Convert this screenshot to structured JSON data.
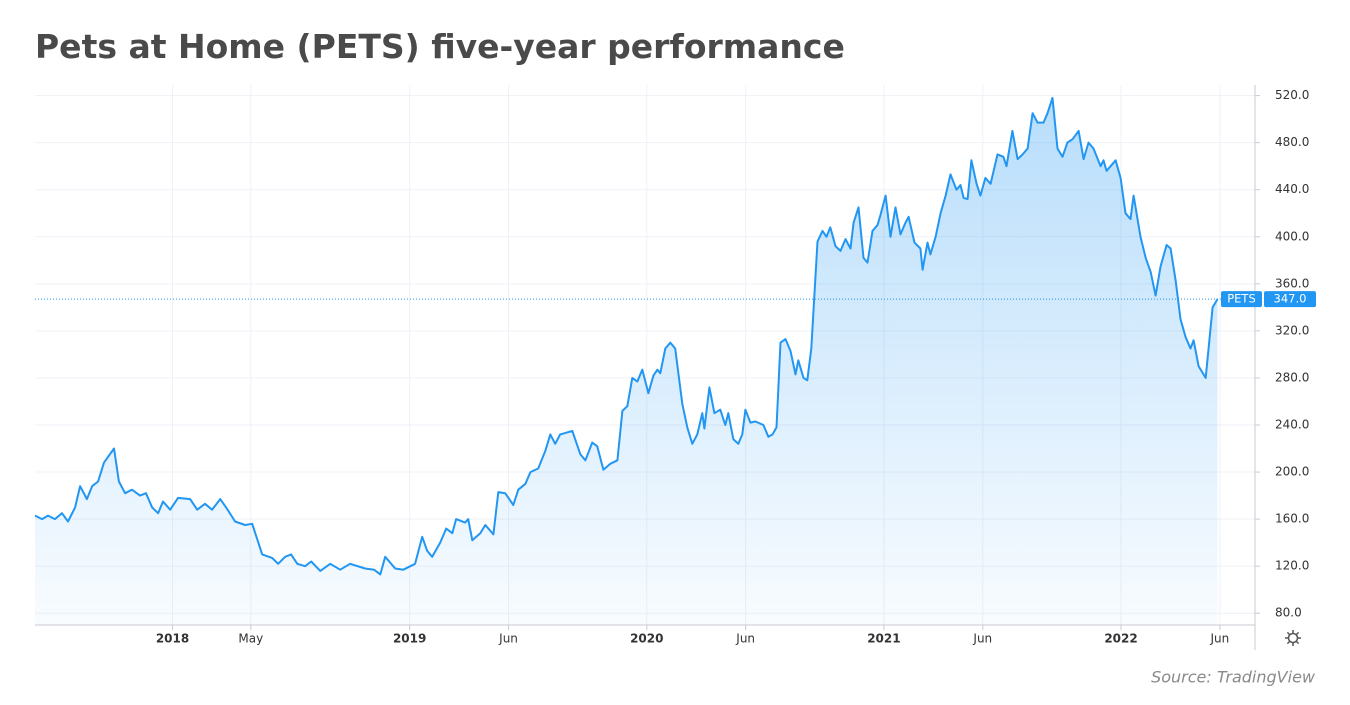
{
  "chart_data": {
    "type": "line",
    "title": "Pets at Home (PETS) five-year performance",
    "source": "Source: TradingView",
    "x": [
      2017.42,
      2017.45,
      2017.475,
      2017.504,
      2017.534,
      2017.559,
      2017.589,
      2017.61,
      2017.639,
      2017.661,
      2017.686,
      2017.711,
      2017.753,
      2017.774,
      2017.8,
      2017.829,
      2017.863,
      2017.888,
      2017.914,
      2017.939,
      2017.96,
      2017.99,
      2018.023,
      2018.074,
      2018.104,
      2018.137,
      2018.167,
      2018.201,
      2018.226,
      2018.264,
      2018.306,
      2018.336,
      2018.378,
      2018.42,
      2018.445,
      2018.475,
      2018.5,
      2018.526,
      2018.559,
      2018.585,
      2018.623,
      2018.665,
      2018.707,
      2018.749,
      2018.812,
      2018.85,
      2018.876,
      2018.897,
      2018.939,
      2018.973,
      2019.023,
      2019.053,
      2019.074,
      2019.095,
      2019.129,
      2019.154,
      2019.18,
      2019.196,
      2019.234,
      2019.247,
      2019.264,
      2019.298,
      2019.319,
      2019.353,
      2019.374,
      2019.403,
      2019.437,
      2019.458,
      2019.488,
      2019.509,
      2019.542,
      2019.572,
      2019.593,
      2019.614,
      2019.635,
      2019.686,
      2019.72,
      2019.741,
      2019.77,
      2019.791,
      2019.817,
      2019.846,
      2019.876,
      2019.897,
      2019.918,
      2019.939,
      2019.96,
      2019.981,
      2020.007,
      2020.028,
      2020.045,
      2020.057,
      2020.078,
      2020.099,
      2020.12,
      2020.15,
      2020.171,
      2020.192,
      2020.213,
      2020.234,
      2020.243,
      2020.264,
      2020.285,
      2020.31,
      2020.331,
      2020.344,
      2020.365,
      2020.386,
      2020.403,
      2020.416,
      2020.437,
      2020.458,
      2020.492,
      2020.513,
      2020.53,
      2020.547,
      2020.564,
      2020.585,
      2020.606,
      2020.627,
      2020.639,
      2020.661,
      2020.677,
      2020.694,
      2020.72,
      2020.741,
      2020.758,
      2020.774,
      2020.796,
      2020.817,
      2020.838,
      2020.859,
      2020.872,
      2020.893,
      2020.914,
      2020.931,
      2020.952,
      2020.973,
      2020.985,
      2021.007,
      2021.028,
      2021.049,
      2021.07,
      2021.091,
      2021.104,
      2021.129,
      2021.154,
      2021.163,
      2021.184,
      2021.196,
      2021.218,
      2021.239,
      2021.26,
      2021.281,
      2021.306,
      2021.323,
      2021.336,
      2021.353,
      2021.369,
      2021.391,
      2021.407,
      2021.428,
      2021.45,
      2021.479,
      2021.504,
      2021.517,
      2021.542,
      2021.564,
      2021.585,
      2021.606,
      2021.627,
      2021.648,
      2021.673,
      2021.69,
      2021.711,
      2021.732,
      2021.753,
      2021.774,
      2021.796,
      2021.821,
      2021.842,
      2021.863,
      2021.884,
      2021.914,
      2021.926,
      2021.939,
      2021.956,
      2021.977,
      2021.998,
      2022.019,
      2022.04,
      2022.053,
      2022.082,
      2022.104,
      2022.125,
      2022.146,
      2022.167,
      2022.192,
      2022.209,
      2022.23,
      2022.251,
      2022.272,
      2022.293,
      2022.306,
      2022.327,
      2022.357,
      2022.386,
      2022.407
    ],
    "series": [
      {
        "name": "PETS",
        "color": "#2196f3",
        "values": [
          163,
          160,
          163,
          160,
          165,
          158,
          170,
          188,
          177,
          188,
          192,
          208,
          220,
          192,
          182,
          185,
          180,
          182,
          170,
          165,
          175,
          168,
          178,
          177,
          168,
          173,
          168,
          177,
          170,
          158,
          155,
          156,
          130,
          127,
          122,
          128,
          130,
          122,
          120,
          124,
          116,
          122,
          117,
          122,
          118,
          117,
          113,
          128,
          118,
          117,
          122,
          145,
          133,
          128,
          140,
          152,
          148,
          160,
          157,
          160,
          142,
          148,
          155,
          147,
          183,
          182,
          172,
          185,
          190,
          200,
          203,
          218,
          232,
          224,
          232,
          235,
          215,
          210,
          225,
          222,
          202,
          207,
          210,
          252,
          256,
          280,
          277,
          287,
          267,
          282,
          287,
          284,
          305,
          310,
          305,
          258,
          238,
          224,
          232,
          250,
          237,
          272,
          250,
          253,
          240,
          250,
          228,
          224,
          232,
          253,
          242,
          243,
          240,
          230,
          232,
          238,
          310,
          313,
          303,
          283,
          295,
          280,
          278,
          305,
          396,
          405,
          400,
          408,
          392,
          388,
          398,
          390,
          412,
          425,
          382,
          378,
          405,
          410,
          418,
          435,
          400,
          425,
          402,
          412,
          417,
          395,
          390,
          372,
          395,
          385,
          400,
          420,
          435,
          453,
          440,
          444,
          433,
          432,
          465,
          445,
          435,
          450,
          445,
          470,
          468,
          460,
          490,
          466,
          470,
          475,
          505,
          497,
          497,
          505,
          518,
          475,
          468,
          480,
          483,
          490,
          466,
          480,
          475,
          460,
          465,
          456,
          460,
          465,
          450,
          420,
          415,
          435,
          400,
          382,
          370,
          350,
          375,
          393,
          390,
          363,
          330,
          315,
          305,
          312,
          290,
          280,
          340,
          347
        ]
      }
    ],
    "annotations": [
      {
        "value": 347,
        "label": "347.0"
      }
    ],
    "xlim": [
      2017.42,
      2022.565
    ],
    "xticks": [
      2018,
      {
        "value": 2018.33,
        "label": "May"
      },
      2019,
      {
        "value": 2019.417,
        "label": "Jun"
      },
      2020,
      {
        "value": 2020.417,
        "label": "Jun"
      },
      2021,
      {
        "value": 2021.417,
        "label": "Jun"
      },
      2022,
      {
        "value": 2022.417,
        "label": "Jun"
      }
    ],
    "ylim": [
      70,
      529
    ],
    "yticks": [
      {
        "value": 80,
        "label": "80.0"
      },
      {
        "value": 120,
        "label": "120.0"
      },
      {
        "value": 160,
        "label": "160.0"
      },
      {
        "value": 200,
        "label": "200.0"
      },
      {
        "value": 240,
        "label": "240.0"
      },
      {
        "value": 280,
        "label": "280.0"
      },
      {
        "value": 320,
        "label": "320.0"
      },
      {
        "value": 360,
        "label": "360.0"
      },
      {
        "value": 400,
        "label": "400.0"
      },
      {
        "value": 440,
        "label": "440.0"
      },
      {
        "value": 480,
        "label": "480.0"
      },
      {
        "value": 520,
        "label": "520.0"
      }
    ],
    "grid": true
  }
}
